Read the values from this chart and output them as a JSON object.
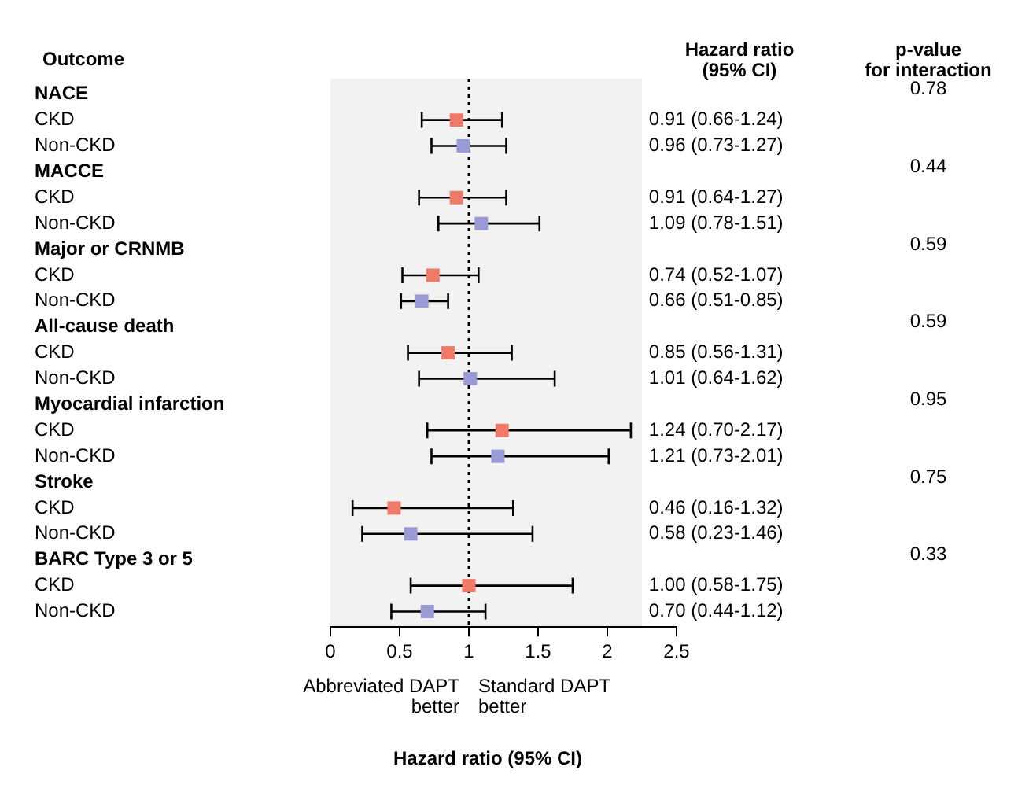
{
  "chart_data": {
    "type": "scatter",
    "orientation": "horizontal",
    "categories": [
      "NACE",
      "CKD",
      "Non-CKD",
      "MACCE",
      "CKD",
      "Non-CKD",
      "Major or CRNMB",
      "CKD",
      "Non-CKD",
      "All-cause death",
      "CKD",
      "Non-CKD",
      "Myocardial infarction",
      "CKD",
      "Non-CKD",
      "Stroke",
      "CKD",
      "Non-CKD",
      "BARC Type 3 or 5",
      "CKD",
      "Non-CKD"
    ],
    "series": [
      {
        "colors": [
          null,
          "#f07a6a",
          "#9a9ad6",
          null,
          "#f07a6a",
          "#9a9ad6",
          null,
          "#f07a6a",
          "#9a9ad6",
          null,
          "#f07a6a",
          "#9a9ad6",
          null,
          "#f07a6a",
          "#9a9ad6",
          null,
          "#f07a6a",
          "#9a9ad6",
          null,
          "#f07a6a",
          "#9a9ad6"
        ],
        "values": [
          null,
          0.91,
          0.96,
          null,
          0.91,
          1.09,
          null,
          0.74,
          0.66,
          null,
          0.85,
          1.01,
          null,
          1.24,
          1.21,
          null,
          0.46,
          0.58,
          null,
          1.0,
          0.7
        ],
        "errors": [
          null,
          [
            0.66,
            1.24
          ],
          [
            0.73,
            1.27
          ],
          null,
          [
            0.64,
            1.27
          ],
          [
            0.78,
            1.51
          ],
          null,
          [
            0.52,
            1.07
          ],
          [
            0.51,
            0.85
          ],
          null,
          [
            0.56,
            1.31
          ],
          [
            0.64,
            1.62
          ],
          null,
          [
            0.7,
            2.17
          ],
          [
            0.73,
            2.01
          ],
          null,
          [
            0.16,
            1.32
          ],
          [
            0.23,
            1.46
          ],
          null,
          [
            0.58,
            1.75
          ],
          [
            0.44,
            1.12
          ]
        ],
        "value_labels": [
          null,
          "0.91 (0.66-1.24)",
          "0.96 (0.73-1.27)",
          null,
          "0.91 (0.64-1.27)",
          "1.09 (0.78-1.51)",
          null,
          "0.74 (0.52-1.07)",
          "0.66 (0.51-0.85)",
          null,
          "0.85 (0.56-1.31)",
          "1.01 (0.64-1.62)",
          null,
          "1.24 (0.70-2.17)",
          "1.21 (0.73-2.01)",
          null,
          "0.46 (0.16-1.32)",
          "0.58 (0.23-1.46)",
          null,
          "1.00 (0.58-1.75)",
          "0.70 (0.44-1.12)"
        ]
      }
    ],
    "xlim": [
      0,
      2.5
    ],
    "xticks": [
      0,
      0.5,
      1,
      1.5,
      2,
      2.5
    ],
    "ref_lines": [
      {
        "axis": "x",
        "value": 1,
        "color": "#000000",
        "line_style": "dotted"
      }
    ],
    "annotations": [
      "Outcome",
      "Hazard ratio\n(95% CI)",
      "p-value\nfor interaction",
      "Abbreviated DAPT\nbetter",
      "Standard DAPT\nbetter",
      "Hazard ratio (95% CI)",
      "0.78",
      "0.44",
      "0.59",
      "0.59",
      "0.95",
      "0.75",
      "0.33"
    ],
    "grid": false,
    "legend": false,
    "marker": "square"
  }
}
